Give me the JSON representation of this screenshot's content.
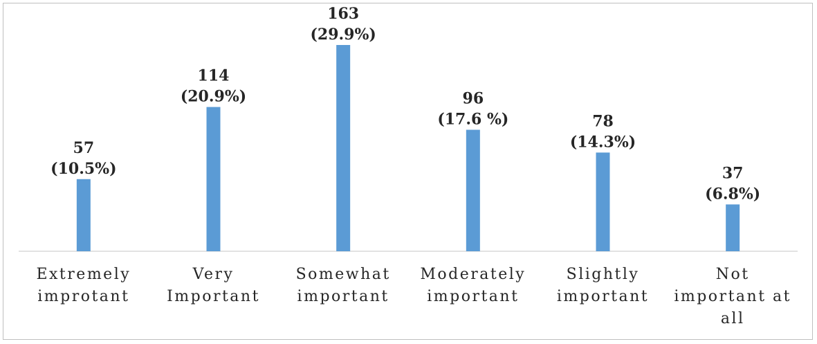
{
  "chart_data": {
    "type": "bar",
    "categories": [
      [
        "Extremely",
        "improtant"
      ],
      [
        "Very",
        "Important"
      ],
      [
        "Somewhat",
        "important"
      ],
      [
        "Moderately",
        "important"
      ],
      [
        "Slightly",
        "important"
      ],
      [
        "Not",
        "important at",
        "all"
      ]
    ],
    "values": [
      57,
      114,
      163,
      96,
      78,
      37
    ],
    "percent_labels": [
      "(10.5%)",
      "(20.9%)",
      "(29.9%)",
      "(17.6 %)",
      "(14.3%)",
      "(6.8%)"
    ],
    "ylim": [
      0,
      163
    ],
    "grid": false,
    "legend": "none",
    "bar_color": "#5b9bd5",
    "title": "",
    "xlabel": "",
    "ylabel": ""
  }
}
